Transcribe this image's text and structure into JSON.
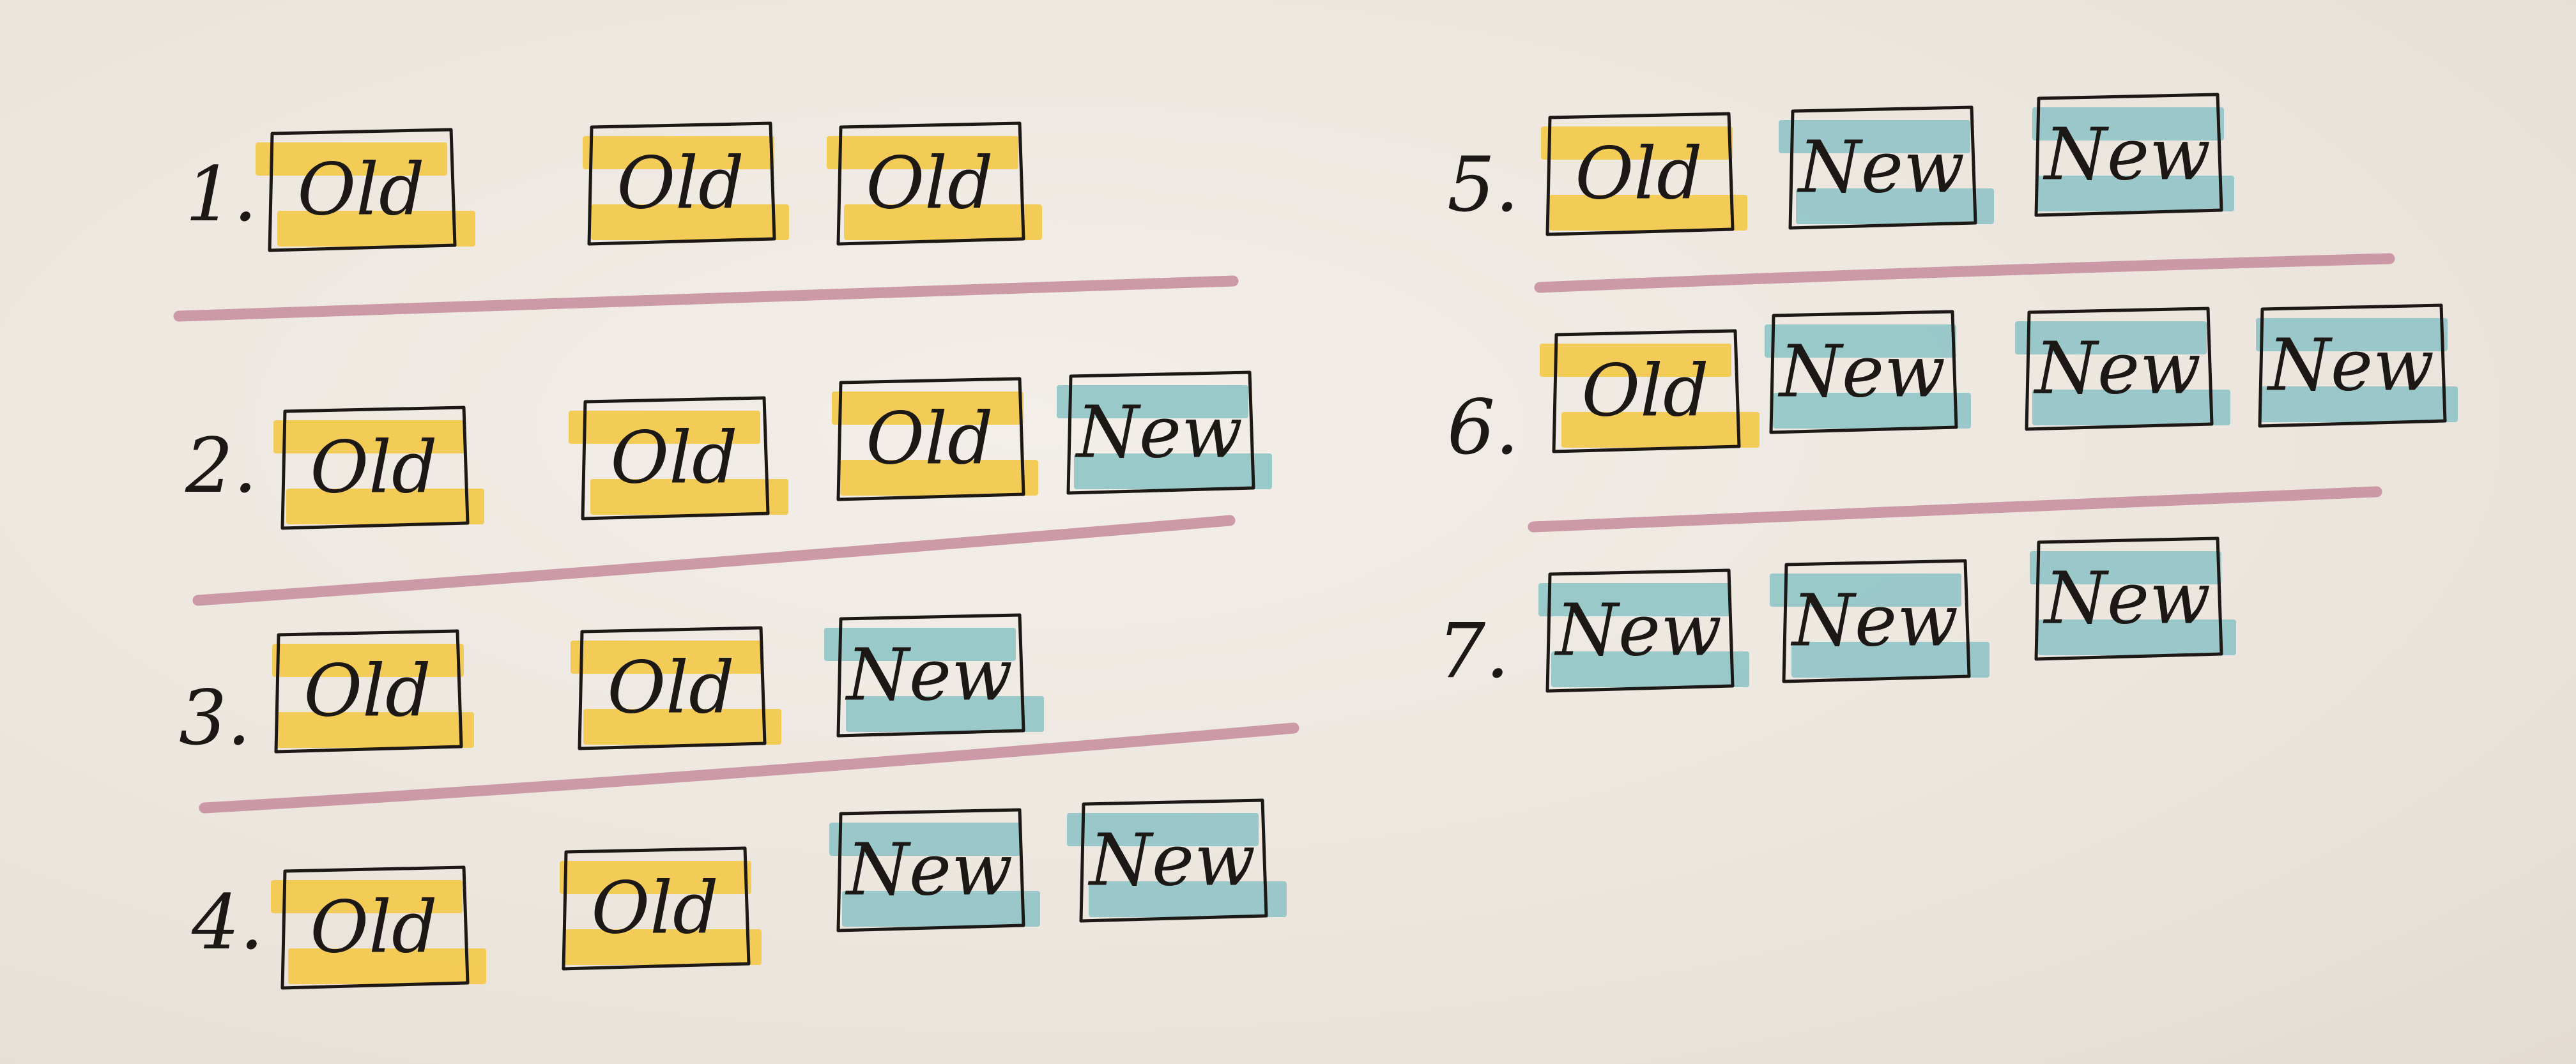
{
  "colors": {
    "old": "#f3c94b",
    "new": "#93c5c8",
    "divider": "#c890a0",
    "ink": "#1c1816"
  },
  "labels": {
    "old": "Old",
    "new": "New"
  },
  "steps": [
    {
      "label": "1.",
      "boxes": [
        "old",
        "old",
        "old"
      ]
    },
    {
      "label": "2.",
      "boxes": [
        "old",
        "old",
        "old",
        "new"
      ]
    },
    {
      "label": "3.",
      "boxes": [
        "old",
        "old",
        "new"
      ]
    },
    {
      "label": "4.",
      "boxes": [
        "old",
        "old",
        "new",
        "new"
      ]
    },
    {
      "label": "5.",
      "boxes": [
        "old",
        "new",
        "new"
      ]
    },
    {
      "label": "6.",
      "boxes": [
        "old",
        "new",
        "new",
        "new"
      ]
    },
    {
      "label": "7.",
      "boxes": [
        "new",
        "new",
        "new"
      ]
    }
  ]
}
